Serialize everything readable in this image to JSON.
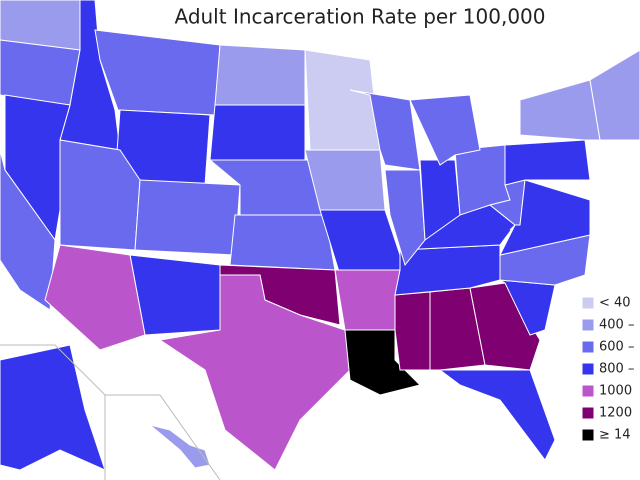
{
  "title": "Adult Incarceration Rate per 100,000",
  "legend": [
    {
      "label": "< 40",
      "color": "#ccccf2"
    },
    {
      "label": "400 –",
      "color": "#9b9bee"
    },
    {
      "label": "600 –",
      "color": "#6a6aee"
    },
    {
      "label": "800 –",
      "color": "#3535ee"
    },
    {
      "label": "1000",
      "color": "#bb55cc"
    },
    {
      "label": "1200",
      "color": "#7f0070"
    },
    {
      "label": "≥ 14",
      "color": "#000000"
    }
  ]
}
